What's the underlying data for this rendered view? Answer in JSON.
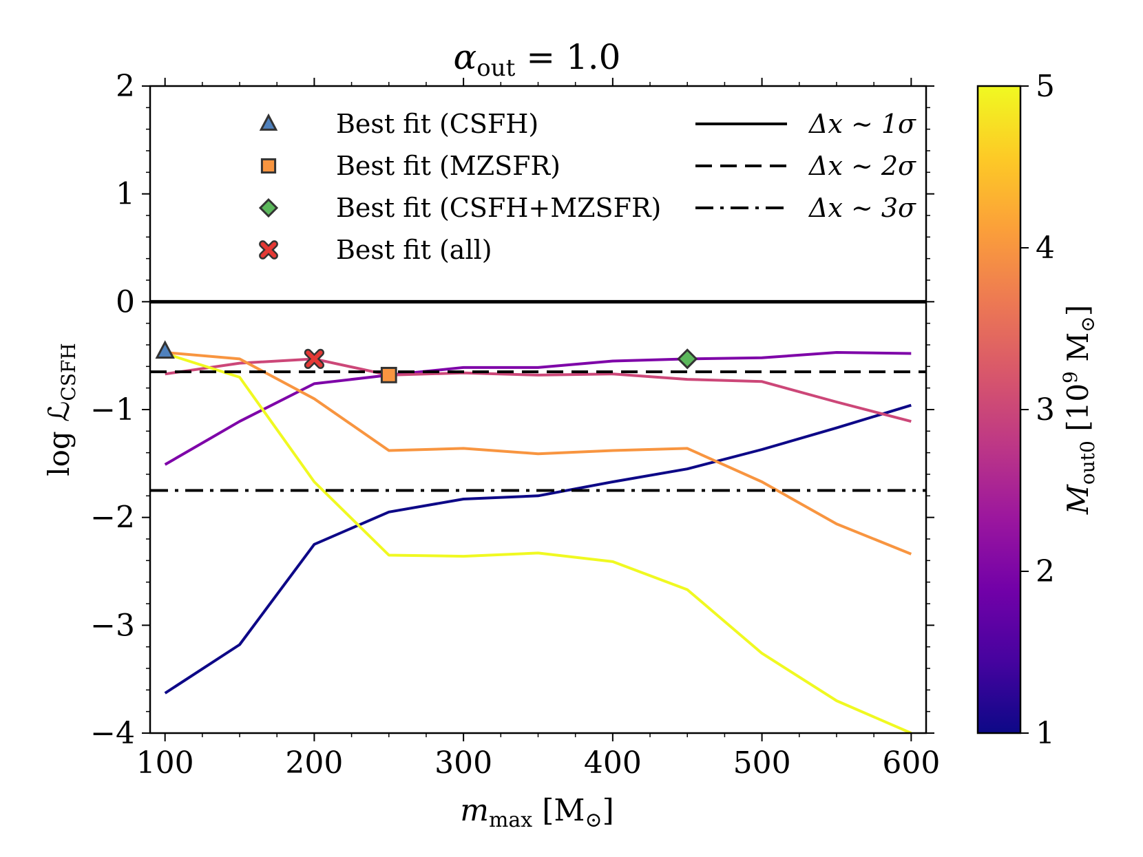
{
  "chart_data": {
    "type": "line",
    "title": {
      "base": "α",
      "sub": "out",
      "rest": " = 1.0"
    },
    "xlabel": {
      "base": "m",
      "sub": "max",
      "unit": " [M",
      "unit_sub": "⊙",
      "close": "]"
    },
    "ylabel": {
      "base": "log ℒ",
      "sub": "CSFH"
    },
    "xlim": [
      90,
      610
    ],
    "ylim": [
      -4,
      2
    ],
    "xticks": [
      100,
      200,
      300,
      400,
      500,
      600
    ],
    "xtick_labels": [
      "100",
      "200",
      "300",
      "400",
      "500",
      "600"
    ],
    "yticks": [
      -4,
      -3,
      -2,
      -1,
      0,
      1,
      2
    ],
    "ytick_labels": [
      "−4",
      "−3",
      "−2",
      "−1",
      "0",
      "1",
      "2"
    ],
    "grid": false,
    "x": [
      100,
      150,
      200,
      250,
      300,
      350,
      400,
      450,
      500,
      550,
      600
    ],
    "series": [
      {
        "name": "M_out0 = 1",
        "color": "#0d0887",
        "values": [
          -3.63,
          -3.18,
          -2.25,
          -1.95,
          -1.83,
          -1.8,
          -1.67,
          -1.55,
          -1.37,
          -1.17,
          -0.96
        ]
      },
      {
        "name": "M_out0 = 2",
        "color": "#7e03a8",
        "values": [
          -1.51,
          -1.11,
          -0.76,
          -0.68,
          -0.61,
          -0.61,
          -0.55,
          -0.53,
          -0.52,
          -0.47,
          -0.48
        ]
      },
      {
        "name": "M_out0 = 3",
        "color": "#cc4778",
        "values": [
          -0.67,
          -0.57,
          -0.53,
          -0.68,
          -0.66,
          -0.68,
          -0.67,
          -0.72,
          -0.74,
          -0.93,
          -1.11
        ]
      },
      {
        "name": "M_out0 = 4",
        "color": "#f89540",
        "values": [
          -0.47,
          -0.53,
          -0.9,
          -1.38,
          -1.36,
          -1.41,
          -1.38,
          -1.36,
          -1.67,
          -2.06,
          -2.34
        ]
      },
      {
        "name": "M_out0 = 5",
        "color": "#f0f921",
        "values": [
          -0.48,
          -0.7,
          -1.67,
          -2.35,
          -2.36,
          -2.33,
          -2.41,
          -2.67,
          -3.26,
          -3.7,
          -4.0
        ]
      }
    ],
    "reference_lines": [
      {
        "label": "Δx ~ 1σ",
        "y": 0.0,
        "style": "solid"
      },
      {
        "label": "Δx ~ 2σ",
        "y": -0.65,
        "style": "dashed"
      },
      {
        "label": "Δx ~ 3σ",
        "y": -1.75,
        "style": "dashdot"
      }
    ],
    "markers": [
      {
        "label": "Best fit (CSFH)",
        "x": 100,
        "y": -0.46,
        "shape": "triangle",
        "color": "#4f81bd"
      },
      {
        "label": "Best fit (MZSFR)",
        "x": 250,
        "y": -0.68,
        "shape": "square",
        "color": "#f89540"
      },
      {
        "label": "Best fit (CSFH+MZSFR)",
        "x": 450,
        "y": -0.53,
        "shape": "diamond",
        "color": "#5cb85c"
      },
      {
        "label": "Best fit (all)",
        "x": 200,
        "y": -0.53,
        "shape": "x",
        "color": "#e53935"
      }
    ],
    "legend_position": "upper area",
    "colorbar": {
      "label": {
        "base": "M",
        "sub": "out0",
        "unit": " [10",
        "sup": "9",
        "rest": " M",
        "rest_sub": "⊙",
        "close": "]"
      },
      "range": [
        1,
        5
      ],
      "ticks": [
        1,
        2,
        3,
        4,
        5
      ],
      "tick_labels": [
        "1",
        "2",
        "3",
        "4",
        "5"
      ],
      "colormap": "plasma",
      "stops": [
        "#0d0887",
        "#46039f",
        "#7201a8",
        "#9c179e",
        "#bd3786",
        "#d8576b",
        "#ed7953",
        "#fb9f3a",
        "#fdca26",
        "#f0f921"
      ]
    }
  }
}
